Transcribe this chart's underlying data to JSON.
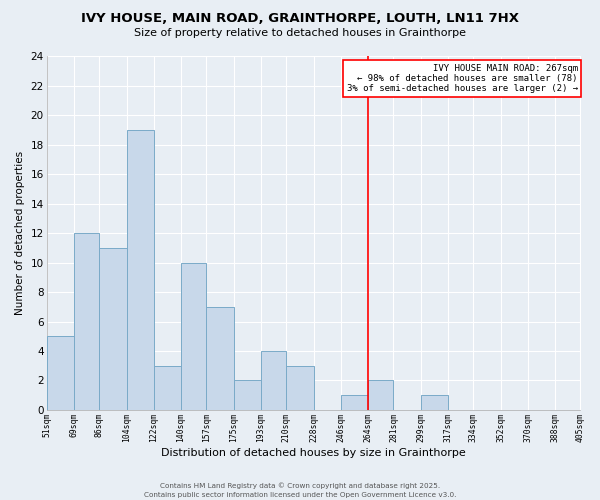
{
  "title": "IVY HOUSE, MAIN ROAD, GRAINTHORPE, LOUTH, LN11 7HX",
  "subtitle": "Size of property relative to detached houses in Grainthorpe",
  "xlabel": "Distribution of detached houses by size in Grainthorpe",
  "ylabel": "Number of detached properties",
  "bin_edges": [
    51,
    69,
    86,
    104,
    122,
    140,
    157,
    175,
    193,
    210,
    228,
    246,
    264,
    281,
    299,
    317,
    334,
    352,
    370,
    388,
    405
  ],
  "bin_counts": [
    5,
    12,
    11,
    19,
    3,
    10,
    7,
    2,
    4,
    3,
    0,
    1,
    2,
    0,
    1,
    0,
    0,
    0,
    0,
    0
  ],
  "bar_color": "#c8d8ea",
  "bar_edge_color": "#7aaac8",
  "vline_x": 264,
  "vline_color": "red",
  "ylim": [
    0,
    24
  ],
  "yticks": [
    0,
    2,
    4,
    6,
    8,
    10,
    12,
    14,
    16,
    18,
    20,
    22,
    24
  ],
  "annotation_title": "IVY HOUSE MAIN ROAD: 267sqm",
  "annotation_line1": "← 98% of detached houses are smaller (78)",
  "annotation_line2": "3% of semi-detached houses are larger (2) →",
  "background_color": "#e8eef4",
  "grid_color": "#ffffff",
  "footer1": "Contains HM Land Registry data © Crown copyright and database right 2025.",
  "footer2": "Contains public sector information licensed under the Open Government Licence v3.0."
}
